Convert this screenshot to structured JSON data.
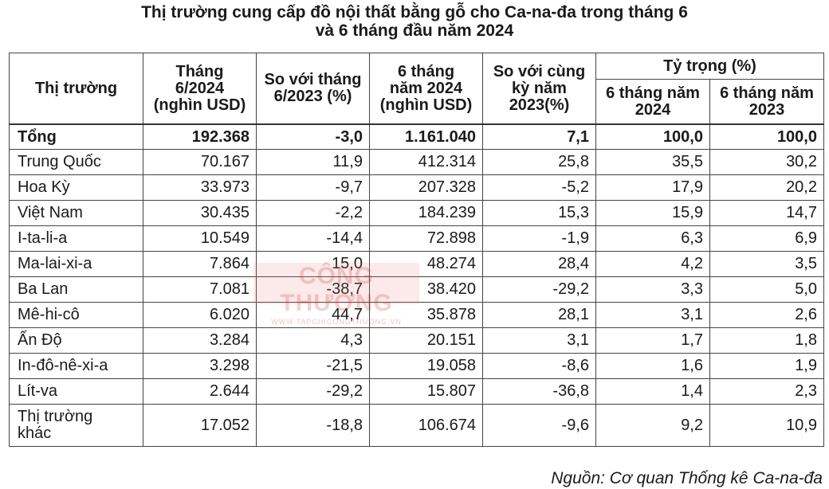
{
  "title": {
    "line1": "Thị trường cung cấp đồ nội thất bằng gỗ cho Ca-na-đa trong tháng 6",
    "line2": "và 6 tháng đầu năm 2024"
  },
  "table": {
    "headers": {
      "market": "Thị trường",
      "month_value": [
        "Tháng",
        "6/2024",
        "(nghìn USD)"
      ],
      "vs_month": [
        "So với tháng",
        "6/2023 (%)"
      ],
      "six_month_value": [
        "6 tháng",
        "năm 2024",
        "(nghìn USD)"
      ],
      "vs_same_period": [
        "So với cùng",
        "kỳ năm",
        "2023(%)"
      ],
      "share_group": "Tỷ trọng (%)",
      "share_2024": [
        "6 tháng năm",
        "2024"
      ],
      "share_2023": [
        "6 tháng năm",
        "2023"
      ]
    },
    "rows": [
      {
        "market": "Tổng",
        "month_value": "192.368",
        "vs_month": "-3,0",
        "six_month_value": "1.161.040",
        "vs_same_period": "7,1",
        "share_2024": "100,0",
        "share_2023": "100,0",
        "bold": true
      },
      {
        "market": "Trung Quốc",
        "month_value": "70.167",
        "vs_month": "11,9",
        "six_month_value": "412.314",
        "vs_same_period": "25,8",
        "share_2024": "35,5",
        "share_2023": "30,2"
      },
      {
        "market": "Hoa Kỳ",
        "month_value": "33.973",
        "vs_month": "-9,7",
        "six_month_value": "207.328",
        "vs_same_period": "-5,2",
        "share_2024": "17,9",
        "share_2023": "20,2"
      },
      {
        "market": "Việt Nam",
        "month_value": "30.435",
        "vs_month": "-2,2",
        "six_month_value": "184.239",
        "vs_same_period": "15,3",
        "share_2024": "15,9",
        "share_2023": "14,7"
      },
      {
        "market": "I-ta-li-a",
        "month_value": "10.549",
        "vs_month": "-14,4",
        "six_month_value": "72.898",
        "vs_same_period": "-1,9",
        "share_2024": "6,3",
        "share_2023": "6,9"
      },
      {
        "market": "Ma-lai-xi-a",
        "month_value": "7.864",
        "vs_month": "15,0",
        "six_month_value": "48.274",
        "vs_same_period": "28,4",
        "share_2024": "4,2",
        "share_2023": "3,5"
      },
      {
        "market": "Ba Lan",
        "month_value": "7.081",
        "vs_month": "-38,7",
        "six_month_value": "38.420",
        "vs_same_period": "-29,2",
        "share_2024": "3,3",
        "share_2023": "5,0"
      },
      {
        "market": "Mê-hi-cô",
        "month_value": "6.020",
        "vs_month": "44,7",
        "six_month_value": "35.878",
        "vs_same_period": "28,1",
        "share_2024": "3,1",
        "share_2023": "2,6"
      },
      {
        "market": "Ấn Độ",
        "month_value": "3.284",
        "vs_month": "4,3",
        "six_month_value": "20.151",
        "vs_same_period": "3,1",
        "share_2024": "1,7",
        "share_2023": "1,8"
      },
      {
        "market": "In-đô-nê-xi-a",
        "month_value": "3.298",
        "vs_month": "-21,5",
        "six_month_value": "19.058",
        "vs_same_period": "-8,6",
        "share_2024": "1,6",
        "share_2023": "1,9"
      },
      {
        "market": "Lít-va",
        "month_value": "2.644",
        "vs_month": "-29,2",
        "six_month_value": "15.807",
        "vs_same_period": "-36,8",
        "share_2024": "1,4",
        "share_2023": "2,3"
      },
      {
        "market": [
          "Thị trường",
          "khác"
        ],
        "month_value": "17.052",
        "vs_month": "-18,8",
        "six_month_value": "106.674",
        "vs_same_period": "-9,6",
        "share_2024": "9,2",
        "share_2023": "10,9"
      }
    ]
  },
  "watermark": {
    "line1": "CÔNG THƯƠNG",
    "line2": "WWW.TAPCHICONGTHUONG.VN"
  },
  "source": "Nguồn: Cơ quan Thống kê Ca-na-đa"
}
